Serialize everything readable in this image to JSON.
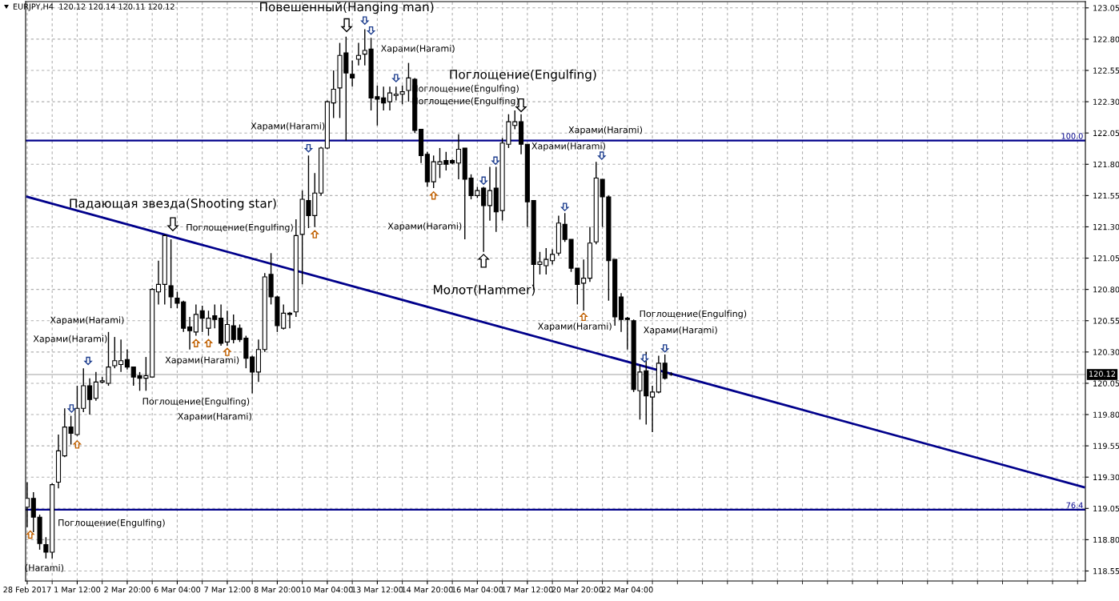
{
  "chart_data": {
    "type": "candlestick",
    "title": "EURJPY,H4  120.12 120.14 120.11 120.12",
    "categories": [
      "28 Feb 2017",
      null,
      null,
      null,
      null,
      null,
      null,
      null,
      "1 Mar 12:00",
      null,
      null,
      null,
      null,
      null,
      null,
      null,
      "2 Mar 20:00",
      null,
      null,
      null,
      null,
      null,
      null,
      null,
      "6 Mar 04:00",
      null,
      null,
      null,
      null,
      null,
      null,
      null,
      "7 Mar 12:00",
      null,
      null,
      null,
      null,
      null,
      null,
      null,
      "8 Mar 20:00",
      null,
      null,
      null,
      null,
      null,
      null,
      null,
      "10 Mar 04:00",
      null,
      null,
      null,
      null,
      null,
      null,
      null,
      "13 Mar 12:00",
      null,
      null,
      null,
      null,
      null,
      null,
      null,
      "14 Mar 20:00",
      null,
      null,
      null,
      null,
      null,
      null,
      null,
      "16 Mar 04:00",
      null,
      null,
      null,
      null,
      null,
      null,
      null,
      "17 Mar 12:00",
      null,
      null,
      null,
      null,
      null,
      null,
      null,
      "20 Mar 20:00",
      null,
      null,
      null,
      null,
      null,
      null,
      null,
      "22 Mar 04:00",
      null,
      null,
      null,
      null,
      null,
      null,
      null,
      null,
      null,
      null,
      null,
      null,
      null,
      null,
      null,
      null,
      null,
      null,
      null,
      null,
      null,
      null,
      null,
      null,
      null,
      null,
      null,
      null,
      null,
      null,
      null,
      null,
      null,
      null,
      null,
      null,
      null,
      null,
      null,
      null,
      null,
      null,
      null,
      null,
      null,
      null,
      null,
      null,
      null,
      null,
      null,
      null,
      null,
      null,
      null,
      null,
      null,
      null,
      null,
      null,
      null,
      null,
      null,
      null,
      null,
      null,
      null,
      null,
      null,
      null,
      null,
      null,
      null
    ],
    "series": [
      {
        "ohlc": [
          [
            119.06,
            119.26,
            118.9,
            119.13
          ],
          [
            119.13,
            119.18,
            118.86,
            118.98
          ],
          [
            118.98,
            119.0,
            118.72,
            118.77
          ],
          [
            118.76,
            118.82,
            118.65,
            118.7
          ],
          [
            118.7,
            119.25,
            118.65,
            119.24
          ],
          [
            119.26,
            119.64,
            119.21,
            119.51
          ],
          [
            119.47,
            119.85,
            119.46,
            119.7
          ],
          [
            119.7,
            119.79,
            119.56,
            119.65
          ],
          [
            119.64,
            120.03,
            119.63,
            119.85
          ],
          [
            119.85,
            120.17,
            119.82,
            120.03
          ],
          [
            120.03,
            120.09,
            119.8,
            119.92
          ],
          [
            119.93,
            120.14,
            119.91,
            120.06
          ],
          [
            120.06,
            120.1,
            120.05,
            120.07
          ],
          [
            120.05,
            120.46,
            120.03,
            120.18
          ],
          [
            120.19,
            120.42,
            120.17,
            120.23
          ],
          [
            120.2,
            120.4,
            120.14,
            120.23
          ],
          [
            120.24,
            120.32,
            120.16,
            120.18
          ],
          [
            120.18,
            120.18,
            120.03,
            120.1
          ],
          [
            120.11,
            120.14,
            119.99,
            120.09
          ],
          [
            120.09,
            120.26,
            119.99,
            120.11
          ],
          [
            120.1,
            120.81,
            120.1,
            120.8
          ],
          [
            120.78,
            121.03,
            120.68,
            120.84
          ],
          [
            120.84,
            121.24,
            120.68,
            121.23
          ],
          [
            120.83,
            121.2,
            120.65,
            120.74
          ],
          [
            120.73,
            120.78,
            120.65,
            120.69
          ],
          [
            120.7,
            120.71,
            120.46,
            120.49
          ],
          [
            120.5,
            120.58,
            120.32,
            120.47
          ],
          [
            120.46,
            120.68,
            120.43,
            120.6
          ],
          [
            120.63,
            120.67,
            120.46,
            120.57
          ],
          [
            120.49,
            120.63,
            120.43,
            120.57
          ],
          [
            120.59,
            120.68,
            120.49,
            120.56
          ],
          [
            120.57,
            120.68,
            120.35,
            120.37
          ],
          [
            120.38,
            120.63,
            120.35,
            120.52
          ],
          [
            120.51,
            120.6,
            120.37,
            120.4
          ],
          [
            120.49,
            120.52,
            120.38,
            120.4
          ],
          [
            120.41,
            120.43,
            120.17,
            120.25
          ],
          [
            120.26,
            120.27,
            119.97,
            120.14
          ],
          [
            120.14,
            120.4,
            120.06,
            120.32
          ],
          [
            120.32,
            120.93,
            120.3,
            120.9
          ],
          [
            120.92,
            121.09,
            120.68,
            120.74
          ],
          [
            120.74,
            120.75,
            120.46,
            120.51
          ],
          [
            120.49,
            120.68,
            120.48,
            120.61
          ],
          [
            120.61,
            120.62,
            120.49,
            120.6
          ],
          [
            120.62,
            121.36,
            120.58,
            121.23
          ],
          [
            121.24,
            121.59,
            120.84,
            121.52
          ],
          [
            121.51,
            121.87,
            121.29,
            121.39
          ],
          [
            121.39,
            121.73,
            121.3,
            121.57
          ],
          [
            121.57,
            121.94,
            121.55,
            121.93
          ],
          [
            121.93,
            122.31,
            121.92,
            122.3
          ],
          [
            122.29,
            122.55,
            122.17,
            122.4
          ],
          [
            122.41,
            122.77,
            122.17,
            122.67
          ],
          [
            122.69,
            122.82,
            121.99,
            122.53
          ],
          [
            122.52,
            122.63,
            122.42,
            122.49
          ],
          [
            122.64,
            122.77,
            122.59,
            122.67
          ],
          [
            122.68,
            122.88,
            122.59,
            122.71
          ],
          [
            122.72,
            122.81,
            122.23,
            122.33
          ],
          [
            122.34,
            122.43,
            122.11,
            122.32
          ],
          [
            122.33,
            122.42,
            122.23,
            122.29
          ],
          [
            122.3,
            122.42,
            122.23,
            122.37
          ],
          [
            122.35,
            122.42,
            122.31,
            122.36
          ],
          [
            122.36,
            122.43,
            122.28,
            122.38
          ],
          [
            122.39,
            122.61,
            122.3,
            122.49
          ],
          [
            122.48,
            122.49,
            122.05,
            122.07
          ],
          [
            122.08,
            122.08,
            121.81,
            121.87
          ],
          [
            121.88,
            121.9,
            121.62,
            121.66
          ],
          [
            121.66,
            121.87,
            121.61,
            121.82
          ],
          [
            121.8,
            121.93,
            121.69,
            121.82
          ],
          [
            121.83,
            121.9,
            121.75,
            121.8
          ],
          [
            121.83,
            121.84,
            121.8,
            121.81
          ],
          [
            121.81,
            122.04,
            121.68,
            121.92
          ],
          [
            121.93,
            121.93,
            121.2,
            121.68
          ],
          [
            121.69,
            121.72,
            121.52,
            121.55
          ],
          [
            121.55,
            121.62,
            121.53,
            121.59
          ],
          [
            121.61,
            121.62,
            121.1,
            121.47
          ],
          [
            121.47,
            121.78,
            121.35,
            121.59
          ],
          [
            121.61,
            121.78,
            121.26,
            121.42
          ],
          [
            121.43,
            122.01,
            121.35,
            121.97
          ],
          [
            121.96,
            122.2,
            121.93,
            122.14
          ],
          [
            122.11,
            122.23,
            122.08,
            122.14
          ],
          [
            122.14,
            122.2,
            121.88,
            121.96
          ],
          [
            121.96,
            121.96,
            121.3,
            121.5
          ],
          [
            121.51,
            121.51,
            120.8,
            121.0
          ],
          [
            121.0,
            121.1,
            120.92,
            121.02
          ],
          [
            120.99,
            121.13,
            120.92,
            121.04
          ],
          [
            121.03,
            121.12,
            121.0,
            121.08
          ],
          [
            121.09,
            121.39,
            121.07,
            121.33
          ],
          [
            121.32,
            121.41,
            121.18,
            121.2
          ],
          [
            121.2,
            121.2,
            120.94,
            120.97
          ],
          [
            120.97,
            120.97,
            120.68,
            120.84
          ],
          [
            120.85,
            121.04,
            120.63,
            120.89
          ],
          [
            120.89,
            121.3,
            120.86,
            121.17
          ],
          [
            121.18,
            121.82,
            121.16,
            121.69
          ],
          [
            121.68,
            121.68,
            121.3,
            121.54
          ],
          [
            121.54,
            121.55,
            120.71,
            121.03
          ],
          [
            121.04,
            121.04,
            120.51,
            120.58
          ],
          [
            120.74,
            120.77,
            120.46,
            120.56
          ],
          [
            120.57,
            120.58,
            120.32,
            120.56
          ],
          [
            120.55,
            120.56,
            119.98,
            120.0
          ],
          [
            119.99,
            120.2,
            119.76,
            120.14
          ],
          [
            120.15,
            120.3,
            119.72,
            119.95
          ],
          [
            119.94,
            120.03,
            119.66,
            119.98
          ],
          [
            119.98,
            120.27,
            119.97,
            120.21
          ],
          [
            120.21,
            120.28,
            120.08,
            120.09
          ],
          [
            120.12,
            120.14,
            120.11,
            120.12
          ],
          null,
          null,
          null,
          null,
          null,
          null,
          null,
          null,
          null,
          null,
          null,
          null,
          null,
          null,
          null,
          null,
          null,
          null,
          null,
          null,
          null,
          null,
          null,
          null,
          null,
          null,
          null,
          null,
          null,
          null,
          null,
          null,
          null,
          null,
          null,
          null,
          null,
          null,
          null,
          null,
          null,
          null,
          null,
          null,
          null,
          null,
          null,
          null,
          null,
          null,
          null,
          null,
          null,
          null,
          null,
          null,
          null,
          null,
          null,
          null,
          null,
          null,
          null,
          null,
          null,
          null
        ]
      },
      {
        "type": "line",
        "color": "#00008b",
        "values": [
          121.54,
          null,
          null,
          null,
          null,
          null,
          null,
          null,
          null,
          null,
          null,
          null,
          null,
          null,
          null,
          null,
          null,
          null,
          null,
          null,
          null,
          null,
          null,
          null,
          null,
          null,
          null,
          null,
          null,
          null,
          null,
          null,
          null,
          null,
          null,
          null,
          null,
          null,
          null,
          null,
          null,
          null,
          null,
          null,
          null,
          null,
          null,
          null,
          null,
          null,
          null,
          null,
          null,
          null,
          null,
          null,
          null,
          null,
          null,
          null,
          null,
          null,
          null,
          null,
          null,
          null,
          null,
          null,
          null,
          null,
          null,
          null,
          null,
          null,
          null,
          null,
          null,
          null,
          null,
          null,
          null,
          null,
          null,
          null,
          null,
          null,
          null,
          null,
          null,
          null,
          null,
          null,
          null,
          null,
          null,
          null,
          null,
          null,
          null,
          null,
          null,
          null,
          null,
          null,
          null,
          null,
          null,
          null,
          null,
          null,
          null,
          null,
          null,
          null,
          null,
          null,
          null,
          null,
          null,
          null,
          null,
          null,
          null,
          null,
          null,
          null,
          null,
          null,
          null,
          null,
          null,
          null,
          null,
          null,
          null,
          null,
          null,
          null,
          null,
          null,
          null,
          null,
          null,
          null,
          null,
          null,
          null,
          null,
          null,
          null,
          null,
          null,
          null,
          null,
          null,
          null,
          null,
          null,
          null,
          null,
          null,
          null,
          null,
          null,
          null,
          null,
          null,
          null,
          null,
          119.22
        ]
      }
    ],
    "ylim": [
      118.47,
      123.1
    ],
    "yticks": [
      {
        "value": 118.55,
        "label": "118.55"
      },
      {
        "value": 118.8,
        "label": "118.80"
      },
      {
        "value": 119.05,
        "label": "119.05"
      },
      {
        "value": 119.3,
        "label": "119.30"
      },
      {
        "value": 119.55,
        "label": "119.55"
      },
      {
        "value": 119.8,
        "label": "119.80"
      },
      {
        "value": 120.05,
        "label": "120.05"
      },
      {
        "value": 120.3,
        "label": "120.30"
      },
      {
        "value": 120.55,
        "label": "120.55"
      },
      {
        "value": 120.8,
        "label": "120.80"
      },
      {
        "value": 121.05,
        "label": "121.05"
      },
      {
        "value": 121.3,
        "label": "121.30"
      },
      {
        "value": 121.55,
        "label": "121.55"
      },
      {
        "value": 121.8,
        "label": "121.80"
      },
      {
        "value": 122.05,
        "label": "122.05"
      },
      {
        "value": 122.3,
        "label": "122.30"
      },
      {
        "value": 122.55,
        "label": "122.55"
      },
      {
        "value": 122.8,
        "label": "122.80"
      },
      {
        "value": 123.05,
        "label": "123.05"
      }
    ],
    "ref_lines": [
      {
        "axis": "y",
        "value": 121.99,
        "color": "#00008b"
      },
      {
        "axis": "y",
        "value": 119.04,
        "color": "#00008b"
      },
      {
        "axis": "y",
        "value": 120.12,
        "label": "120.12",
        "color": "#c0c0c0"
      }
    ],
    "grid": true,
    "annotations": [
      "Падающая звезда(Shooting star)",
      "Повешенный(Hanging man)",
      "Поглощение(Engulfing)",
      "Молот(Hammer)",
      "Харами(Harami)",
      "Харами(Harami)",
      "Поглощение(Engulfing)",
      "Поглощение(Engulfing)",
      "Харами(Harami)",
      "Харами(Harami)",
      "Харами(Harami)",
      "Поглощение(Engulfing)",
      "Харами(Harami)",
      "Харами(Harami)",
      "Поглощение(Engulfing)",
      "(Harami)",
      "Харами(Harami)",
      "Поглощение(Engulfing)",
      "Харами(Harami)",
      "Харами(Harami)",
      "Поглощение(Engulfing)",
      "Харами(Harami)",
      {
        "text": "100.0",
        "y": 121.99
      },
      {
        "text": "76.4",
        "y": 119.04
      }
    ]
  }
}
